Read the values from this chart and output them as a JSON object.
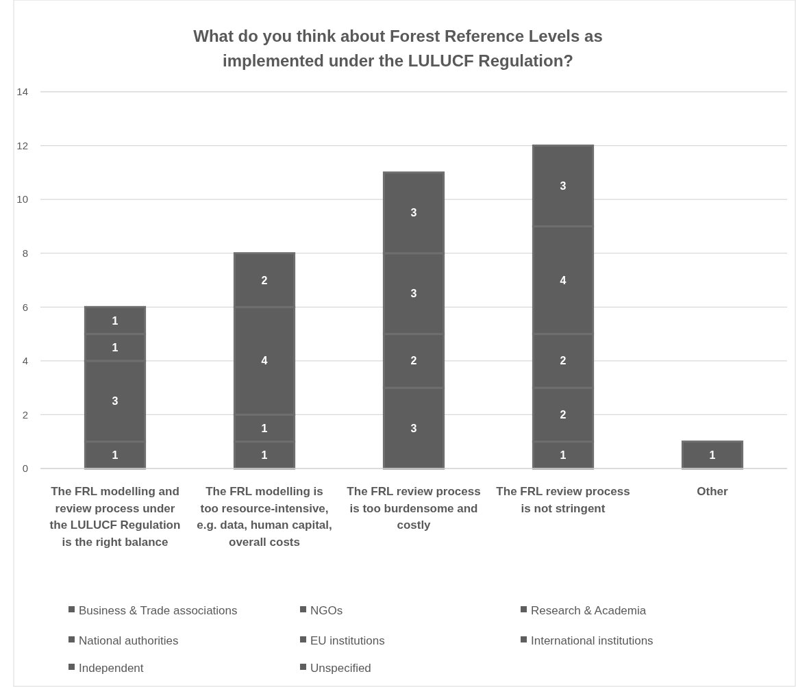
{
  "chart_data": {
    "type": "bar",
    "title": "What do you think about Forest Reference Levels as implemented under the LULUCF Regulation?",
    "categories": [
      "The FRL modelling and review process under the LULUCF Regulation is the right balance",
      "The FRL modelling is too resource-intensive, e.g. data, human capital, overall costs",
      "The FRL review process is too burdensome and costly",
      "The FRL review process is not stringent",
      "Other"
    ],
    "stacked": true,
    "data_labels": true,
    "grid": "y",
    "legend": "bottom",
    "ylim": [
      0,
      14
    ],
    "yticks": [
      0,
      2,
      4,
      6,
      8,
      10,
      12,
      14
    ],
    "series": [
      {
        "name": "Business & Trade associations",
        "color": "#5e5e5e",
        "values": [
          1,
          1,
          3,
          1,
          null
        ]
      },
      {
        "name": "NGOs",
        "color": "#5e5e5e",
        "values": [
          3,
          1,
          2,
          2,
          null
        ]
      },
      {
        "name": "Research & Academia",
        "color": "#5e5e5e",
        "values": [
          1,
          4,
          3,
          2,
          null
        ]
      },
      {
        "name": "National authorities",
        "color": "#5e5e5e",
        "values": [
          1,
          2,
          3,
          4,
          null
        ]
      },
      {
        "name": "EU institutions",
        "color": "#5e5e5e",
        "values": [
          null,
          null,
          null,
          3,
          null
        ]
      },
      {
        "name": "International institutions",
        "color": "#5e5e5e",
        "values": [
          null,
          null,
          null,
          null,
          null
        ]
      },
      {
        "name": "Independent",
        "color": "#5e5e5e",
        "values": [
          null,
          null,
          null,
          null,
          null
        ]
      },
      {
        "name": "Unspecified",
        "color": "#5e5e5e",
        "values": [
          null,
          null,
          null,
          null,
          1
        ]
      }
    ]
  }
}
